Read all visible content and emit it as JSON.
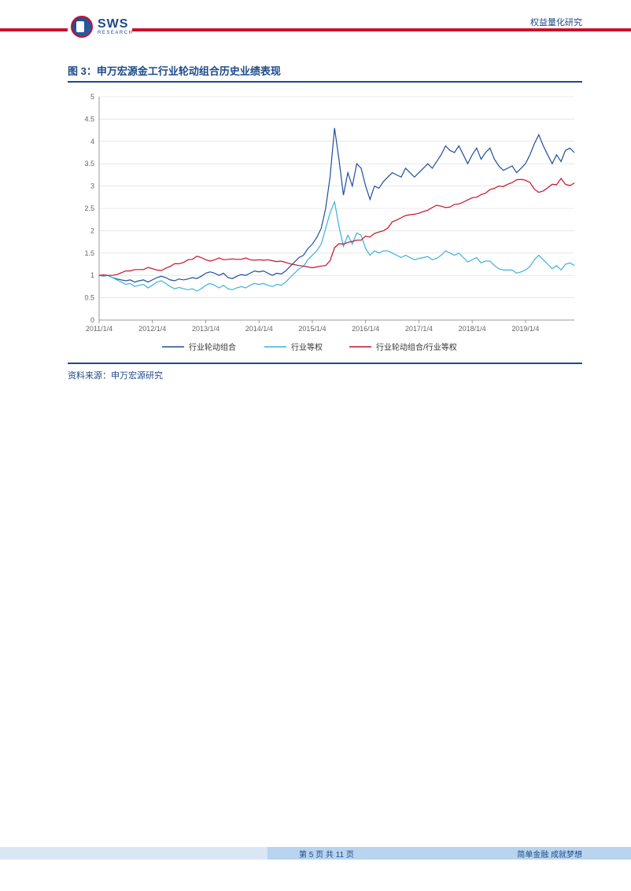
{
  "header": {
    "logo_main": "SWS",
    "logo_sub": "RESEARCH",
    "label": "权益量化研究"
  },
  "figure": {
    "title": "图 3：申万宏源金工行业轮动组合历史业绩表现",
    "source": "资料来源：申万宏源研究"
  },
  "chart": {
    "type": "line",
    "background_color": "#ffffff",
    "grid_color": "#d9d9d9",
    "axis_color": "#808080",
    "axis_fontsize": 9,
    "ylim": [
      0,
      5
    ],
    "ytick_step": 0.5,
    "yticks": [
      "0",
      "0.5",
      "1",
      "1.5",
      "2",
      "2.5",
      "3",
      "3.5",
      "4",
      "4.5",
      "5"
    ],
    "xticks": [
      "2011/1/4",
      "2012/1/4",
      "2013/1/4",
      "2014/1/4",
      "2015/1/4",
      "2016/1/4",
      "2017/1/4",
      "2018/1/4",
      "2019/1/4"
    ],
    "legend": {
      "position": "bottom-center",
      "fontsize": 10,
      "items": [
        {
          "label": "行业轮动组合",
          "color": "#1f4e9c"
        },
        {
          "label": "行业等权",
          "color": "#3bb0e0"
        },
        {
          "label": "行业轮动组合/行业等权",
          "color": "#c8102e"
        }
      ]
    },
    "line_width": 1.2,
    "series": [
      {
        "name": "行业轮动组合",
        "color": "#1f4e9c",
        "values": [
          1.0,
          0.99,
          1.0,
          0.95,
          0.92,
          0.9,
          0.88,
          0.9,
          0.85,
          0.88,
          0.9,
          0.85,
          0.9,
          0.95,
          0.98,
          0.95,
          0.9,
          0.88,
          0.92,
          0.9,
          0.92,
          0.95,
          0.93,
          0.98,
          1.05,
          1.08,
          1.05,
          1.0,
          1.05,
          0.95,
          0.93,
          0.98,
          1.02,
          1.0,
          1.05,
          1.1,
          1.08,
          1.1,
          1.05,
          1.0,
          1.05,
          1.03,
          1.1,
          1.2,
          1.3,
          1.4,
          1.45,
          1.6,
          1.7,
          1.85,
          2.05,
          2.5,
          3.2,
          4.3,
          3.6,
          2.8,
          3.3,
          3.0,
          3.5,
          3.4,
          3.0,
          2.7,
          3.0,
          2.95,
          3.1,
          3.2,
          3.3,
          3.25,
          3.2,
          3.4,
          3.3,
          3.2,
          3.3,
          3.4,
          3.5,
          3.4,
          3.55,
          3.7,
          3.9,
          3.8,
          3.75,
          3.9,
          3.7,
          3.5,
          3.7,
          3.85,
          3.6,
          3.75,
          3.85,
          3.6,
          3.45,
          3.35,
          3.4,
          3.45,
          3.3,
          3.4,
          3.5,
          3.7,
          3.95,
          4.15,
          3.9,
          3.7,
          3.5,
          3.7,
          3.55,
          3.8,
          3.85,
          3.75
        ]
      },
      {
        "name": "行业等权",
        "color": "#3bb0e0",
        "values": [
          1.0,
          0.98,
          1.0,
          0.95,
          0.9,
          0.85,
          0.8,
          0.82,
          0.75,
          0.78,
          0.8,
          0.72,
          0.78,
          0.85,
          0.88,
          0.82,
          0.75,
          0.7,
          0.73,
          0.7,
          0.68,
          0.7,
          0.65,
          0.7,
          0.78,
          0.82,
          0.78,
          0.72,
          0.78,
          0.7,
          0.68,
          0.72,
          0.75,
          0.72,
          0.78,
          0.82,
          0.8,
          0.82,
          0.78,
          0.75,
          0.8,
          0.78,
          0.85,
          0.95,
          1.05,
          1.15,
          1.2,
          1.35,
          1.45,
          1.55,
          1.7,
          2.05,
          2.4,
          2.65,
          2.1,
          1.65,
          1.9,
          1.7,
          1.95,
          1.9,
          1.6,
          1.45,
          1.55,
          1.5,
          1.55,
          1.55,
          1.5,
          1.45,
          1.4,
          1.45,
          1.4,
          1.35,
          1.38,
          1.4,
          1.42,
          1.35,
          1.38,
          1.45,
          1.55,
          1.5,
          1.45,
          1.5,
          1.4,
          1.3,
          1.35,
          1.4,
          1.28,
          1.32,
          1.32,
          1.22,
          1.15,
          1.12,
          1.12,
          1.12,
          1.05,
          1.08,
          1.12,
          1.2,
          1.35,
          1.45,
          1.35,
          1.25,
          1.15,
          1.22,
          1.12,
          1.25,
          1.28,
          1.22
        ]
      },
      {
        "name": "行业轮动组合/行业等权",
        "color": "#c8102e",
        "values": [
          1.0,
          1.01,
          1.0,
          1.0,
          1.02,
          1.06,
          1.1,
          1.1,
          1.13,
          1.13,
          1.13,
          1.18,
          1.15,
          1.12,
          1.11,
          1.16,
          1.2,
          1.26,
          1.26,
          1.29,
          1.35,
          1.36,
          1.43,
          1.4,
          1.35,
          1.32,
          1.35,
          1.39,
          1.35,
          1.36,
          1.37,
          1.36,
          1.36,
          1.39,
          1.35,
          1.34,
          1.35,
          1.34,
          1.35,
          1.33,
          1.31,
          1.32,
          1.29,
          1.26,
          1.24,
          1.22,
          1.21,
          1.19,
          1.17,
          1.19,
          1.21,
          1.22,
          1.33,
          1.62,
          1.71,
          1.7,
          1.74,
          1.76,
          1.79,
          1.79,
          1.88,
          1.86,
          1.94,
          1.97,
          2.0,
          2.06,
          2.2,
          2.24,
          2.29,
          2.34,
          2.36,
          2.37,
          2.39,
          2.43,
          2.46,
          2.52,
          2.57,
          2.55,
          2.52,
          2.53,
          2.59,
          2.6,
          2.64,
          2.69,
          2.74,
          2.75,
          2.81,
          2.84,
          2.92,
          2.95,
          3.0,
          2.99,
          3.04,
          3.08,
          3.14,
          3.15,
          3.13,
          3.08,
          2.93,
          2.86,
          2.89,
          2.96,
          3.04,
          3.03,
          3.17,
          3.04,
          3.01,
          3.07
        ]
      }
    ]
  },
  "footer": {
    "page": "第 5 页 共 11 页",
    "slogan": "简单金融 成就梦想"
  }
}
